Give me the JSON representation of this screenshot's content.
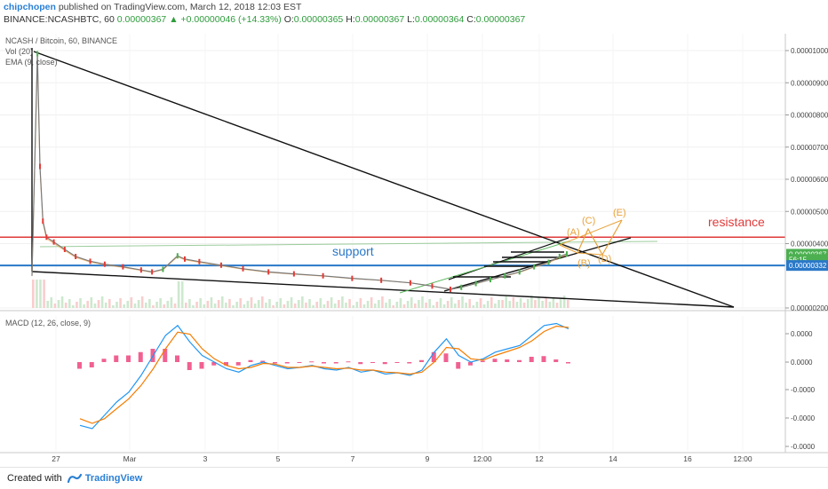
{
  "header": {
    "author": "chipchopen",
    "published_text": "published on TradingView.com, March 12, 2018 12:03 EST",
    "symbol_line": "BINANCE:NCASHBTC, 60",
    "last_price": "0.00000367",
    "change": "▲ +0.00000046 (+14.33%)",
    "o_label": "O:",
    "o_value": "0.00000365",
    "h_label": "H:",
    "h_value": "0.00000367",
    "l_label": "L:",
    "l_value": "0.00000364",
    "c_label": "C:",
    "c_value": "0.00000367"
  },
  "footer": {
    "created_with": "Created with",
    "brand": "TradingView"
  },
  "colors": {
    "support": "#2a78c8",
    "resistance": "#e03a3a",
    "trendline": "#111111",
    "channel": "#5cb85c",
    "pattern": "#e8a23a",
    "macd_line": "#2196f3",
    "signal_line": "#f57c00",
    "histogram": "#e91e63",
    "candle_up": "#4caf50",
    "candle_down": "#e53935"
  },
  "chart_data": [
    {
      "type": "line",
      "pane": "price",
      "legend": [
        "NCASH / Bitcoin, 60, BINANCE",
        "Vol (20)",
        "EMA (9, close)"
      ],
      "y_ticks": [
        "0.00001000",
        "0.00000900",
        "0.00000800",
        "0.00000700",
        "0.00000600",
        "0.00000500",
        "0.00000400",
        "0.00000200"
      ],
      "y_tick_values": [
        1000,
        900,
        800,
        700,
        600,
        500,
        400,
        200
      ],
      "ylim": [
        182,
        1045
      ],
      "y_unit_note": "values in satoshi-scaled units (1e-8 BTC)",
      "x_ticks": [
        "27",
        "Mar",
        "3",
        "5",
        "7",
        "9",
        "12:00",
        "12",
        "14",
        "16",
        "12:00"
      ],
      "price_badges": [
        {
          "label": "0.00000367",
          "value": 367,
          "color": "#4caf50"
        },
        {
          "label": "56:15",
          "value": 351,
          "color": "#4caf50"
        },
        {
          "label": "0.00000332",
          "value": 332,
          "color": "#2a78c8"
        }
      ],
      "price_series": [
        {
          "x": 0,
          "y": 300
        },
        {
          "x": 1.5,
          "y": 990
        },
        {
          "x": 2.2,
          "y": 640
        },
        {
          "x": 3,
          "y": 470
        },
        {
          "x": 4,
          "y": 420
        },
        {
          "x": 6,
          "y": 405
        },
        {
          "x": 9,
          "y": 382
        },
        {
          "x": 12,
          "y": 360
        },
        {
          "x": 16,
          "y": 345
        },
        {
          "x": 20,
          "y": 336
        },
        {
          "x": 25,
          "y": 328
        },
        {
          "x": 30,
          "y": 318
        },
        {
          "x": 33,
          "y": 312
        },
        {
          "x": 36,
          "y": 320
        },
        {
          "x": 40,
          "y": 362
        },
        {
          "x": 42,
          "y": 352
        },
        {
          "x": 46,
          "y": 344
        },
        {
          "x": 52,
          "y": 333
        },
        {
          "x": 58,
          "y": 322
        },
        {
          "x": 65,
          "y": 312
        },
        {
          "x": 72,
          "y": 306
        },
        {
          "x": 80,
          "y": 300
        },
        {
          "x": 88,
          "y": 292
        },
        {
          "x": 96,
          "y": 286
        },
        {
          "x": 104,
          "y": 278
        },
        {
          "x": 110,
          "y": 268
        },
        {
          "x": 115,
          "y": 258
        },
        {
          "x": 118,
          "y": 264
        },
        {
          "x": 122,
          "y": 276
        },
        {
          "x": 126,
          "y": 288
        },
        {
          "x": 130,
          "y": 300
        },
        {
          "x": 134,
          "y": 312
        },
        {
          "x": 138,
          "y": 328
        },
        {
          "x": 142,
          "y": 342
        },
        {
          "x": 145,
          "y": 360
        },
        {
          "x": 147,
          "y": 368
        }
      ],
      "annotations": [
        {
          "label": "support",
          "value": 332,
          "color": "#2a78c8"
        },
        {
          "label": "resistance",
          "value": 420,
          "color": "#e03a3a"
        },
        {
          "label": "(A)",
          "color": "#e8a23a"
        },
        {
          "label": "(B)",
          "color": "#e8a23a"
        },
        {
          "label": "(C)",
          "color": "#e8a23a"
        },
        {
          "label": "(D)",
          "color": "#e8a23a"
        },
        {
          "label": "(E)",
          "color": "#e8a23a"
        }
      ]
    },
    {
      "type": "line",
      "pane": "macd",
      "legend": "MACD (12, 26, close, 9)",
      "y_ticks": [
        "0.0000",
        "0.0000",
        "-0.0000",
        "-0.0000",
        "-0.0000"
      ],
      "series": [
        {
          "name": "MACD",
          "values": [
            -0.95,
            -1.0,
            -0.8,
            -0.6,
            -0.45,
            -0.2,
            0.1,
            0.4,
            0.55,
            0.3,
            0.1,
            0.0,
            -0.1,
            -0.15,
            -0.05,
            0.0,
            -0.05,
            -0.1,
            -0.08,
            -0.05,
            -0.1,
            -0.12,
            -0.08,
            -0.15,
            -0.12,
            -0.18,
            -0.16,
            -0.2,
            -0.12,
            0.15,
            0.35,
            0.1,
            0.0,
            0.05,
            0.15,
            0.2,
            0.25,
            0.4,
            0.55,
            0.58,
            0.5
          ]
        },
        {
          "name": "Signal",
          "values": [
            -0.85,
            -0.92,
            -0.85,
            -0.7,
            -0.55,
            -0.35,
            -0.1,
            0.2,
            0.45,
            0.42,
            0.2,
            0.05,
            -0.05,
            -0.1,
            -0.08,
            -0.02,
            -0.03,
            -0.08,
            -0.08,
            -0.06,
            -0.08,
            -0.1,
            -0.09,
            -0.12,
            -0.12,
            -0.15,
            -0.16,
            -0.18,
            -0.15,
            0.0,
            0.22,
            0.2,
            0.05,
            0.03,
            0.1,
            0.16,
            0.22,
            0.32,
            0.46,
            0.54,
            0.52
          ]
        }
      ]
    }
  ]
}
